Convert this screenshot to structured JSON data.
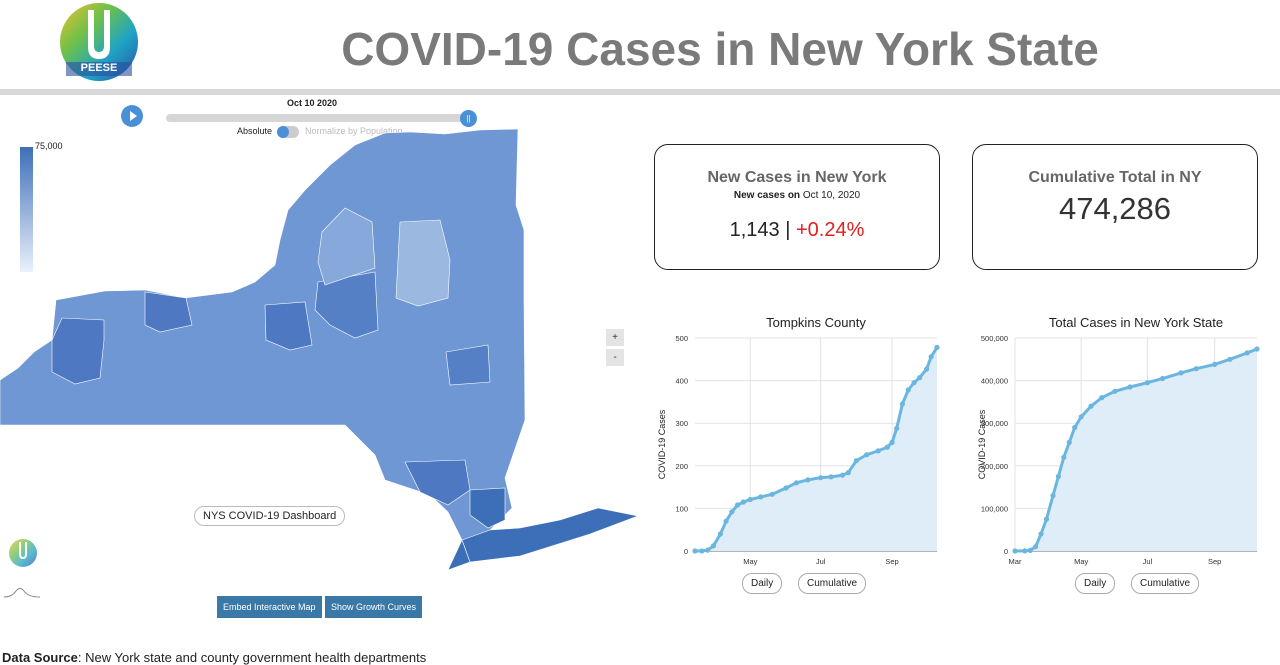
{
  "header": {
    "title": "COVID-19 Cases in New York State",
    "logo_text": "PEESE"
  },
  "map_controls": {
    "date": "Oct 10 2020",
    "absolute_label": "Absolute",
    "normalize_label": "Normalize by Population",
    "legend_max": "75,000",
    "slider_icon": "||",
    "zoom_in": "+",
    "zoom_out": "-",
    "map_label": "NYS COVID-19 Dashboard"
  },
  "buttons": {
    "embed": "Embed Interactive Map",
    "growth": "Show Growth Curves"
  },
  "source": {
    "label": "Data Source",
    "text": ": New York state and county government health departments"
  },
  "card_new": {
    "title": "New Cases in New York",
    "sub_prefix": "New cases on",
    "sub_date": "Oct 10, 2020",
    "count": "1,143",
    "separator": "|",
    "pct": "+0.24%"
  },
  "card_cum": {
    "title": "Cumulative Total in NY",
    "value": "474,286"
  },
  "toggles": {
    "daily": "Daily",
    "cumulative": "Cumulative"
  },
  "colors": {
    "accent": "#4a90d9",
    "button": "#3a78a8",
    "increase": "#e02020",
    "line": "#6bb6de",
    "area": "#deedf8",
    "map_dark": "#3d6fb8",
    "map_light": "#9ab8e0"
  },
  "chart_data": [
    {
      "type": "area",
      "title": "Tompkins County",
      "ylabel": "COVID-19 Cases",
      "xlabel": "",
      "x_ticks": [
        "May",
        "Jul",
        "Sep"
      ],
      "y_ticks": [
        "0",
        "100",
        "200",
        "300",
        "400",
        "500"
      ],
      "ylim": [
        0,
        500
      ],
      "x": [
        "2020-03-14",
        "2020-03-20",
        "2020-03-25",
        "2020-03-30",
        "2020-04-05",
        "2020-04-10",
        "2020-04-15",
        "2020-04-20",
        "2020-04-25",
        "2020-05-01",
        "2020-05-10",
        "2020-05-20",
        "2020-06-01",
        "2020-06-10",
        "2020-06-20",
        "2020-07-01",
        "2020-07-10",
        "2020-07-20",
        "2020-07-25",
        "2020-08-01",
        "2020-08-10",
        "2020-08-20",
        "2020-08-28",
        "2020-09-01",
        "2020-09-05",
        "2020-09-10",
        "2020-09-15",
        "2020-09-20",
        "2020-09-25",
        "2020-10-01",
        "2020-10-05",
        "2020-10-10"
      ],
      "values": [
        0,
        0,
        2,
        12,
        40,
        70,
        92,
        108,
        115,
        121,
        127,
        133,
        148,
        160,
        167,
        172,
        174,
        178,
        184,
        212,
        226,
        235,
        244,
        255,
        288,
        345,
        378,
        395,
        407,
        427,
        456,
        478
      ]
    },
    {
      "type": "area",
      "title": "Total Cases in New York State",
      "ylabel": "COVID-19 Cases",
      "xlabel": "",
      "x_ticks": [
        "Mar",
        "May",
        "Jul",
        "Sep"
      ],
      "y_ticks": [
        "0",
        "100,000",
        "200,000",
        "300,000",
        "400,000",
        "500,000"
      ],
      "ylim": [
        0,
        500000
      ],
      "x": [
        "2020-03-01",
        "2020-03-10",
        "2020-03-15",
        "2020-03-20",
        "2020-03-25",
        "2020-03-30",
        "2020-04-05",
        "2020-04-10",
        "2020-04-15",
        "2020-04-20",
        "2020-04-25",
        "2020-05-01",
        "2020-05-10",
        "2020-05-20",
        "2020-06-01",
        "2020-06-15",
        "2020-07-01",
        "2020-07-15",
        "2020-08-01",
        "2020-08-15",
        "2020-09-01",
        "2020-09-15",
        "2020-10-01",
        "2020-10-10"
      ],
      "values": [
        0,
        200,
        1500,
        10000,
        40000,
        75000,
        130000,
        175000,
        220000,
        255000,
        290000,
        315000,
        340000,
        360000,
        375000,
        385000,
        395000,
        405000,
        418000,
        428000,
        438000,
        450000,
        465000,
        474286
      ]
    }
  ]
}
